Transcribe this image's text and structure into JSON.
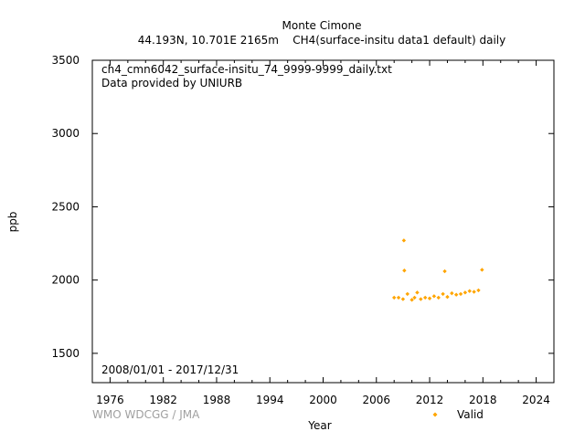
{
  "chart_data": {
    "type": "scatter",
    "title": "Monte Cimone",
    "subtitle": "44.193N, 10.701E 2165m    CH4(surface-insitu data1 default) daily",
    "file_label": "ch4_cmn6042_surface-insitu_74_9999-9999_daily.txt",
    "provider_label": "Data provided by UNIURB",
    "date_range": "2008/01/01 - 2017/12/31",
    "credit": "WMO WDCGG / JMA",
    "xlabel": "Year",
    "ylabel": "ppb",
    "xlim": [
      1974,
      2026
    ],
    "ylim": [
      1300,
      3500
    ],
    "x_ticks": [
      1976,
      1982,
      1988,
      1994,
      2000,
      2006,
      2012,
      2018,
      2024
    ],
    "y_ticks": [
      1500,
      2000,
      2500,
      3000,
      3500
    ],
    "grid": false,
    "legend_position": "bottom-right",
    "series": [
      {
        "name": "Valid",
        "color": "#ffa500",
        "marker": "diamond",
        "points": [
          [
            2008.0,
            1880
          ],
          [
            2008.5,
            1880
          ],
          [
            2009.0,
            1870
          ],
          [
            2009.1,
            2270
          ],
          [
            2009.15,
            2065
          ],
          [
            2009.5,
            1905
          ],
          [
            2010.0,
            1865
          ],
          [
            2010.3,
            1880
          ],
          [
            2010.6,
            1915
          ],
          [
            2011.0,
            1870
          ],
          [
            2011.5,
            1880
          ],
          [
            2012.0,
            1875
          ],
          [
            2012.5,
            1890
          ],
          [
            2013.0,
            1880
          ],
          [
            2013.5,
            1905
          ],
          [
            2013.7,
            2060
          ],
          [
            2014.0,
            1885
          ],
          [
            2014.5,
            1910
          ],
          [
            2015.0,
            1900
          ],
          [
            2015.5,
            1905
          ],
          [
            2016.0,
            1915
          ],
          [
            2016.5,
            1925
          ],
          [
            2017.0,
            1920
          ],
          [
            2017.5,
            1930
          ],
          [
            2017.9,
            2070
          ]
        ]
      }
    ]
  }
}
